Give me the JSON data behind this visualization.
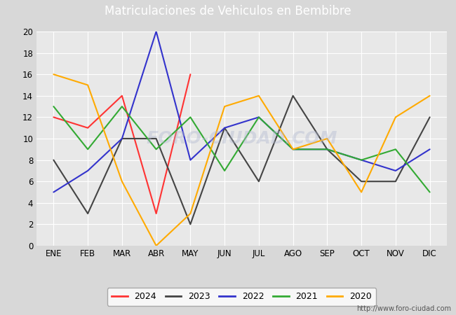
{
  "title": "Matriculaciones de Vehiculos en Bembibre",
  "months": [
    "ENE",
    "FEB",
    "MAR",
    "ABR",
    "MAY",
    "JUN",
    "JUL",
    "AGO",
    "SEP",
    "OCT",
    "NOV",
    "DIC"
  ],
  "series": {
    "2024": [
      12,
      11,
      14,
      3,
      16,
      null,
      null,
      null,
      null,
      null,
      null,
      null
    ],
    "2023": [
      8,
      3,
      10,
      10,
      2,
      11,
      6,
      14,
      9,
      6,
      6,
      12
    ],
    "2022": [
      5,
      7,
      10,
      20,
      8,
      11,
      12,
      9,
      9,
      8,
      7,
      9
    ],
    "2021": [
      13,
      9,
      13,
      9,
      12,
      7,
      12,
      9,
      9,
      8,
      9,
      5
    ],
    "2020": [
      16,
      15,
      6,
      0,
      3,
      13,
      14,
      9,
      10,
      5,
      12,
      14
    ]
  },
  "colors": {
    "2024": "#ff3333",
    "2023": "#444444",
    "2022": "#3333cc",
    "2021": "#33aa33",
    "2020": "#ffaa00"
  },
  "ylim": [
    0,
    20
  ],
  "yticks": [
    0,
    2,
    4,
    6,
    8,
    10,
    12,
    14,
    16,
    18,
    20
  ],
  "figure_bg": "#d8d8d8",
  "plot_bg": "#e8e8e8",
  "title_bar_color": "#5588cc",
  "title_text_color": "white",
  "title_fontsize": 12,
  "footer_text": "http://www.foro-ciudad.com",
  "watermark": "FORO-CIUDAD.COM",
  "grid_color": "white",
  "tick_fontsize": 8.5
}
